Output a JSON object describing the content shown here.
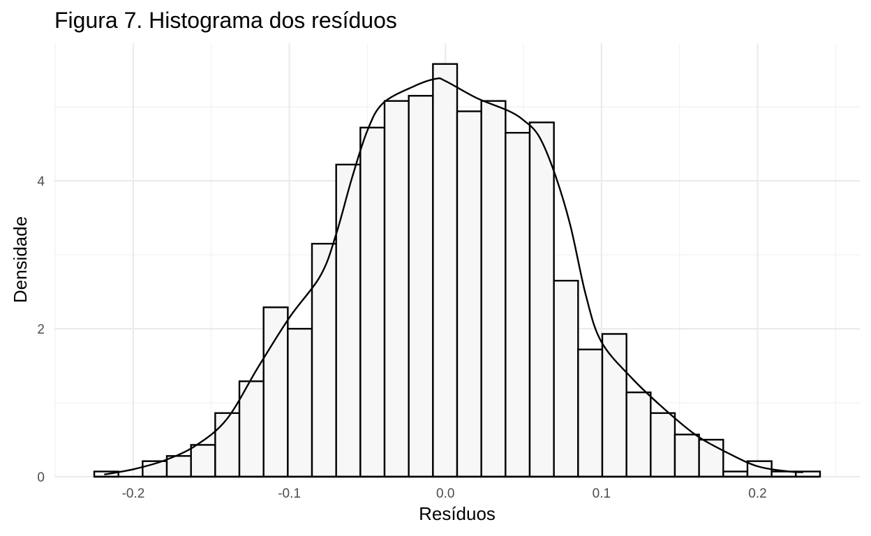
{
  "chart_data": {
    "type": "bar",
    "title": "Figura 7. Histograma dos resíduos",
    "xlabel": "Resíduos",
    "ylabel": "Densidade",
    "xlim": [
      -0.2505,
      0.2655
    ],
    "ylim": [
      0,
      5.86
    ],
    "x_ticks": [
      -0.2,
      -0.1,
      0.0,
      0.1,
      0.2
    ],
    "x_tick_labels": [
      "-0.2",
      "-0.1",
      "0.0",
      "0.1",
      "0.2"
    ],
    "y_ticks": [
      0,
      2,
      4
    ],
    "y_tick_labels": [
      "0",
      "2",
      "4"
    ],
    "grid": true,
    "bin_width": 0.0155,
    "bin_start": -0.225,
    "histogram_values": [
      0.07,
      0.0,
      0.21,
      0.28,
      0.43,
      0.86,
      1.29,
      2.29,
      2.0,
      3.15,
      4.22,
      4.72,
      5.08,
      5.15,
      5.58,
      4.94,
      5.08,
      4.65,
      4.79,
      2.65,
      1.72,
      1.93,
      1.14,
      0.86,
      0.57,
      0.5,
      0.07,
      0.21,
      0.07,
      0.07
    ],
    "colors": {
      "bar_fill": "#f7f7f7",
      "bar_stroke": "#000000",
      "line": "#000000",
      "background": "#ffffff"
    },
    "series": [
      {
        "type": "line",
        "x": [
          -0.2186,
          -0.2,
          -0.18,
          -0.16,
          -0.14,
          -0.12,
          -0.1,
          -0.08,
          -0.07,
          -0.06,
          -0.05,
          -0.04,
          -0.02,
          -0.006,
          0.0,
          0.02,
          0.04,
          0.05,
          0.06,
          0.07,
          0.08,
          0.09,
          0.1,
          0.12,
          0.14,
          0.16,
          0.18,
          0.2,
          0.22,
          0.2292
        ],
        "values": [
          0.03,
          0.1,
          0.22,
          0.42,
          0.78,
          1.48,
          2.15,
          2.72,
          3.28,
          4.03,
          4.68,
          5.05,
          5.28,
          5.38,
          5.35,
          5.12,
          4.95,
          4.82,
          4.6,
          4.1,
          3.4,
          2.45,
          1.82,
          1.32,
          0.92,
          0.57,
          0.33,
          0.14,
          0.07,
          0.06
        ]
      }
    ]
  }
}
